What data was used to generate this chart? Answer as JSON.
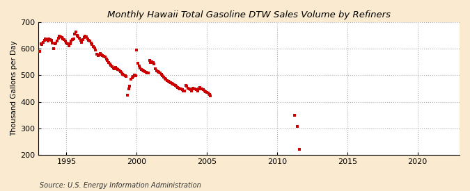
{
  "title": "Monthly Hawaii Total Gasoline DTW Sales Volume by Refiners",
  "ylabel": "Thousand Gallons per Day",
  "source": "Source: U.S. Energy Information Administration",
  "background_color": "#faebd0",
  "plot_background_color": "#ffffff",
  "point_color": "#cc0000",
  "ylim": [
    200,
    700
  ],
  "yticks": [
    200,
    300,
    400,
    500,
    600,
    700
  ],
  "xlim_start": 1993.0,
  "xlim_end": 2023.0,
  "xticks": [
    1995,
    2000,
    2005,
    2010,
    2015,
    2020
  ],
  "data": [
    [
      1993.08,
      590
    ],
    [
      1993.17,
      620
    ],
    [
      1993.25,
      615
    ],
    [
      1993.33,
      625
    ],
    [
      1993.42,
      632
    ],
    [
      1993.5,
      638
    ],
    [
      1993.58,
      635
    ],
    [
      1993.67,
      628
    ],
    [
      1993.75,
      638
    ],
    [
      1993.83,
      635
    ],
    [
      1993.92,
      632
    ],
    [
      1994.0,
      622
    ],
    [
      1994.08,
      600
    ],
    [
      1994.17,
      618
    ],
    [
      1994.25,
      622
    ],
    [
      1994.33,
      630
    ],
    [
      1994.42,
      640
    ],
    [
      1994.5,
      648
    ],
    [
      1994.58,
      645
    ],
    [
      1994.67,
      642
    ],
    [
      1994.75,
      638
    ],
    [
      1994.83,
      635
    ],
    [
      1994.92,
      628
    ],
    [
      1995.0,
      622
    ],
    [
      1995.08,
      618
    ],
    [
      1995.17,
      612
    ],
    [
      1995.25,
      618
    ],
    [
      1995.33,
      628
    ],
    [
      1995.42,
      635
    ],
    [
      1995.5,
      638
    ],
    [
      1995.58,
      655
    ],
    [
      1995.67,
      662
    ],
    [
      1995.75,
      650
    ],
    [
      1995.83,
      645
    ],
    [
      1995.92,
      640
    ],
    [
      1996.0,
      632
    ],
    [
      1996.08,
      625
    ],
    [
      1996.17,
      635
    ],
    [
      1996.25,
      642
    ],
    [
      1996.33,
      648
    ],
    [
      1996.42,
      645
    ],
    [
      1996.5,
      638
    ],
    [
      1996.58,
      632
    ],
    [
      1996.67,
      628
    ],
    [
      1996.75,
      622
    ],
    [
      1996.83,
      615
    ],
    [
      1996.92,
      608
    ],
    [
      1997.0,
      602
    ],
    [
      1997.08,
      595
    ],
    [
      1997.17,
      580
    ],
    [
      1997.25,
      575
    ],
    [
      1997.33,
      578
    ],
    [
      1997.42,
      582
    ],
    [
      1997.5,
      578
    ],
    [
      1997.58,
      575
    ],
    [
      1997.67,
      572
    ],
    [
      1997.75,
      568
    ],
    [
      1997.83,
      562
    ],
    [
      1997.92,
      555
    ],
    [
      1998.0,
      548
    ],
    [
      1998.08,
      542
    ],
    [
      1998.17,
      538
    ],
    [
      1998.25,
      532
    ],
    [
      1998.33,
      528
    ],
    [
      1998.42,
      525
    ],
    [
      1998.5,
      530
    ],
    [
      1998.58,
      525
    ],
    [
      1998.67,
      522
    ],
    [
      1998.75,
      520
    ],
    [
      1998.83,
      515
    ],
    [
      1998.92,
      510
    ],
    [
      1999.0,
      505
    ],
    [
      1999.08,
      500
    ],
    [
      1999.17,
      498
    ],
    [
      1999.25,
      495
    ],
    [
      1999.33,
      425
    ],
    [
      1999.42,
      448
    ],
    [
      1999.5,
      460
    ],
    [
      1999.58,
      485
    ],
    [
      1999.67,
      490
    ],
    [
      1999.75,
      495
    ],
    [
      1999.83,
      500
    ],
    [
      1999.92,
      498
    ],
    [
      2000.0,
      595
    ],
    [
      2000.08,
      545
    ],
    [
      2000.17,
      535
    ],
    [
      2000.25,
      528
    ],
    [
      2000.33,
      522
    ],
    [
      2000.42,
      520
    ],
    [
      2000.5,
      518
    ],
    [
      2000.58,
      515
    ],
    [
      2000.67,
      512
    ],
    [
      2000.75,
      510
    ],
    [
      2000.83,
      508
    ],
    [
      2000.92,
      555
    ],
    [
      2001.0,
      548
    ],
    [
      2001.08,
      552
    ],
    [
      2001.17,
      548
    ],
    [
      2001.25,
      542
    ],
    [
      2001.33,
      525
    ],
    [
      2001.42,
      518
    ],
    [
      2001.5,
      515
    ],
    [
      2001.58,
      512
    ],
    [
      2001.67,
      508
    ],
    [
      2001.75,
      505
    ],
    [
      2001.83,
      498
    ],
    [
      2001.92,
      492
    ],
    [
      2002.0,
      488
    ],
    [
      2002.08,
      485
    ],
    [
      2002.17,
      480
    ],
    [
      2002.25,
      478
    ],
    [
      2002.33,
      475
    ],
    [
      2002.42,
      472
    ],
    [
      2002.5,
      470
    ],
    [
      2002.58,
      468
    ],
    [
      2002.67,
      465
    ],
    [
      2002.75,
      462
    ],
    [
      2002.83,
      458
    ],
    [
      2002.92,
      455
    ],
    [
      2003.0,
      452
    ],
    [
      2003.08,
      450
    ],
    [
      2003.17,
      448
    ],
    [
      2003.25,
      445
    ],
    [
      2003.33,
      442
    ],
    [
      2003.42,
      440
    ],
    [
      2003.5,
      462
    ],
    [
      2003.58,
      458
    ],
    [
      2003.67,
      452
    ],
    [
      2003.75,
      448
    ],
    [
      2003.83,
      445
    ],
    [
      2003.92,
      442
    ],
    [
      2004.0,
      452
    ],
    [
      2004.08,
      450
    ],
    [
      2004.17,
      448
    ],
    [
      2004.25,
      445
    ],
    [
      2004.33,
      442
    ],
    [
      2004.42,
      448
    ],
    [
      2004.5,
      455
    ],
    [
      2004.58,
      450
    ],
    [
      2004.67,
      448
    ],
    [
      2004.75,
      445
    ],
    [
      2004.83,
      442
    ],
    [
      2004.92,
      438
    ],
    [
      2005.0,
      435
    ],
    [
      2005.08,
      432
    ],
    [
      2005.17,
      428
    ],
    [
      2005.25,
      422
    ],
    [
      2011.25,
      350
    ],
    [
      2011.42,
      308
    ],
    [
      2011.58,
      220
    ]
  ]
}
